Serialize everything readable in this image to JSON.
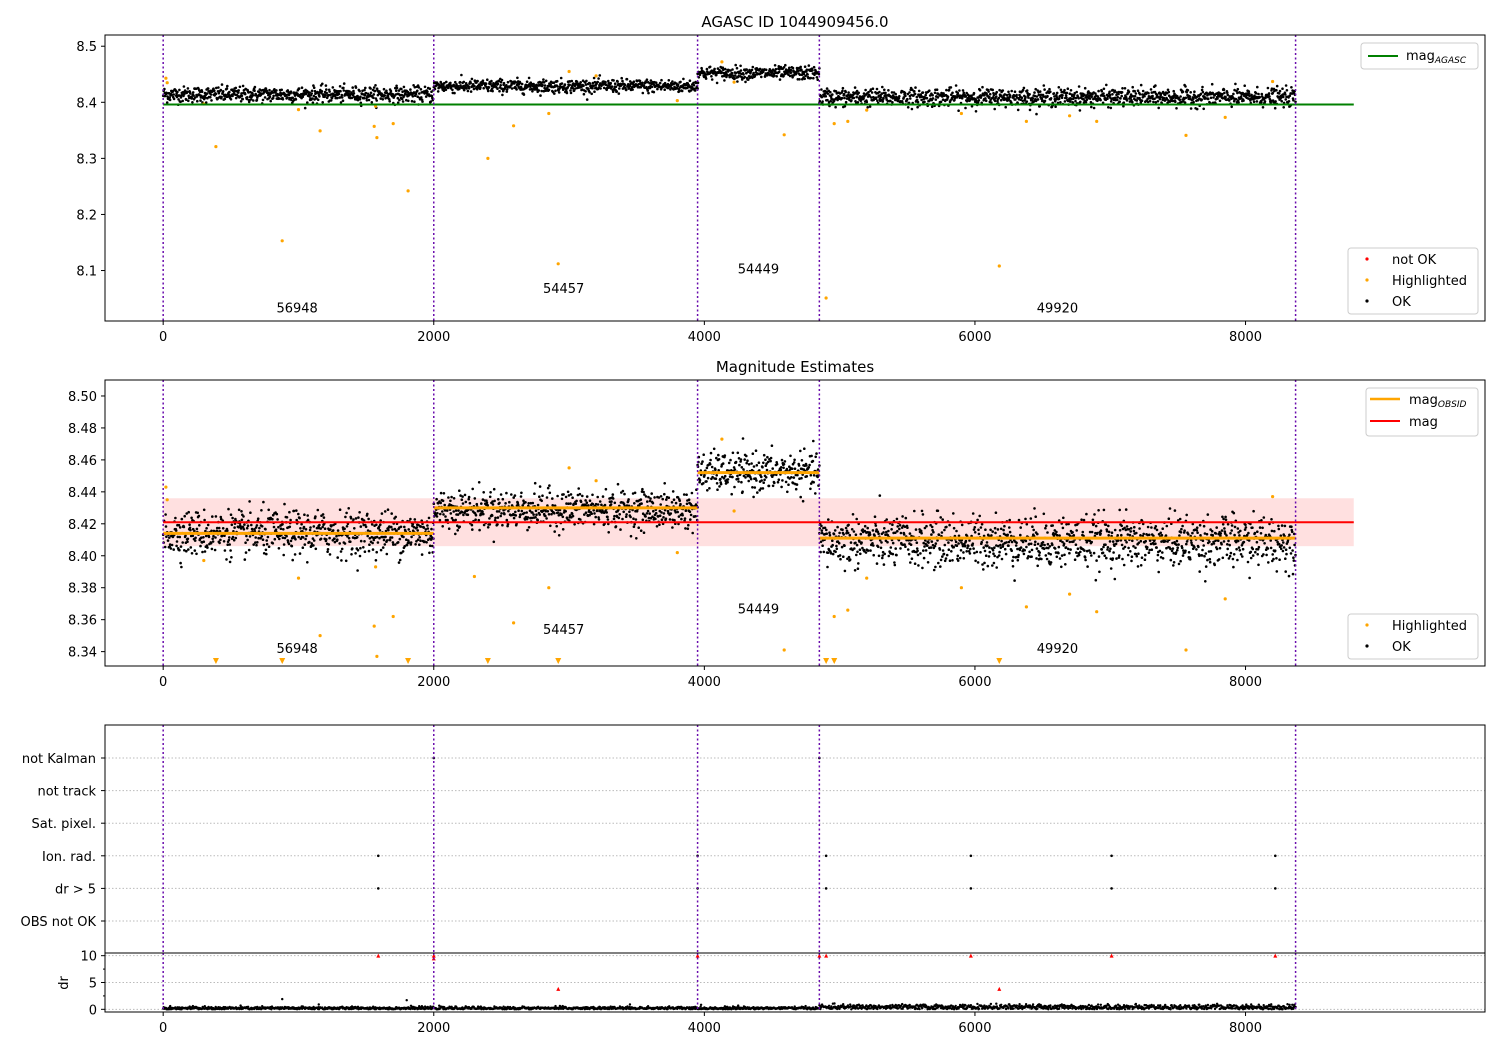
{
  "chart_data": [
    {
      "type": "scatter",
      "title": "AGASC ID 1044909456.0",
      "xlabel": "",
      "ylabel": "",
      "xlim": [
        -430,
        9770
      ],
      "ylim": [
        8.01,
        8.52
      ],
      "xticks": [
        0,
        2000,
        4000,
        6000,
        8000
      ],
      "yticks": [
        8.1,
        8.2,
        8.3,
        8.4,
        8.5
      ],
      "reference_line": {
        "name": "mag_AGASC",
        "value": 8.396,
        "x_range": [
          0,
          8800
        ],
        "color": "#008000"
      },
      "obsid_boundaries": [
        0,
        2000,
        3950,
        4850,
        8370
      ],
      "obsid_labels": [
        {
          "label": "56948",
          "x": 990,
          "y": 8.025
        },
        {
          "label": "54457",
          "x": 2960,
          "y": 8.06
        },
        {
          "label": "54449",
          "x": 4400,
          "y": 8.095
        },
        {
          "label": "49920",
          "x": 6610,
          "y": 8.025
        }
      ],
      "series": [
        {
          "name": "OK",
          "color": "#000000",
          "segments": [
            {
              "x0": 0,
              "x1": 2000,
              "mean": 8.414,
              "spread": 0.007
            },
            {
              "x0": 2000,
              "x1": 3950,
              "mean": 8.429,
              "spread": 0.006
            },
            {
              "x0": 3950,
              "x1": 4850,
              "mean": 8.452,
              "spread": 0.006
            },
            {
              "x0": 4850,
              "x1": 8370,
              "mean": 8.409,
              "spread": 0.008
            }
          ]
        },
        {
          "name": "Highlighted",
          "color": "#FFA500",
          "points": [
            [
              20,
              8.443
            ],
            [
              30,
              8.435
            ],
            [
              390,
              8.321
            ],
            [
              880,
              8.153
            ],
            [
              1160,
              8.349
            ],
            [
              1560,
              8.357
            ],
            [
              1580,
              8.337
            ],
            [
              1700,
              8.362
            ],
            [
              1810,
              8.242
            ],
            [
              1570,
              8.393
            ],
            [
              2400,
              8.3
            ],
            [
              2590,
              8.358
            ],
            [
              2850,
              8.38
            ],
            [
              2920,
              8.112
            ],
            [
              3000,
              8.455
            ],
            [
              3200,
              8.447
            ],
            [
              4130,
              8.472
            ],
            [
              4220,
              8.436
            ],
            [
              4590,
              8.342
            ],
            [
              4900,
              8.051
            ],
            [
              4960,
              8.362
            ],
            [
              5060,
              8.366
            ],
            [
              5900,
              8.38
            ],
            [
              6180,
              8.108
            ],
            [
              6380,
              8.366
            ],
            [
              6700,
              8.376
            ],
            [
              6900,
              8.366
            ],
            [
              7560,
              8.341
            ],
            [
              7850,
              8.373
            ],
            [
              8200,
              8.437
            ],
            [
              300,
              8.397
            ],
            [
              1000,
              8.387
            ],
            [
              3800,
              8.403
            ],
            [
              5200,
              8.386
            ]
          ]
        },
        {
          "name": "not OK",
          "color": "#FF0000",
          "points": []
        }
      ],
      "legend": {
        "upper": [
          "mag_AGASC"
        ],
        "lower": [
          "not OK",
          "Highlighted",
          "OK"
        ],
        "placement": "right"
      }
    },
    {
      "type": "scatter",
      "title": "Magnitude Estimates",
      "xlabel": "",
      "ylabel": "",
      "xlim": [
        -430,
        9770
      ],
      "ylim": [
        8.331,
        8.51
      ],
      "xticks": [
        0,
        2000,
        4000,
        6000,
        8000
      ],
      "yticks": [
        8.34,
        8.36,
        8.38,
        8.4,
        8.42,
        8.44,
        8.46,
        8.48,
        8.5
      ],
      "mag_line": {
        "name": "mag",
        "value": 8.421,
        "band": [
          8.406,
          8.436
        ],
        "x_range": [
          0,
          8800
        ],
        "color": "#FF0000"
      },
      "mag_obsid": [
        {
          "x0": 0,
          "x1": 2000,
          "value": 8.414
        },
        {
          "x0": 2000,
          "x1": 3950,
          "value": 8.43
        },
        {
          "x0": 3950,
          "x1": 4850,
          "value": 8.452
        },
        {
          "x0": 4850,
          "x1": 8370,
          "value": 8.411
        }
      ],
      "obsid_boundaries": [
        0,
        2000,
        3950,
        4850,
        8370
      ],
      "obsid_labels": [
        {
          "label": "56948",
          "x": 990,
          "y": 8.339
        },
        {
          "label": "54457",
          "x": 2960,
          "y": 8.351
        },
        {
          "label": "54449",
          "x": 4400,
          "y": 8.364
        },
        {
          "label": "49920",
          "x": 6610,
          "y": 8.339
        }
      ],
      "series": [
        {
          "name": "OK",
          "color": "#000000",
          "segments": [
            {
              "x0": 0,
              "x1": 2000,
              "mean": 8.414,
              "spread": 0.007
            },
            {
              "x0": 2000,
              "x1": 3950,
              "mean": 8.429,
              "spread": 0.006
            },
            {
              "x0": 3950,
              "x1": 4850,
              "mean": 8.452,
              "spread": 0.006
            },
            {
              "x0": 4850,
              "x1": 8370,
              "mean": 8.409,
              "spread": 0.008
            }
          ]
        },
        {
          "name": "Highlighted",
          "color": "#FFA500",
          "points": [
            [
              20,
              8.443
            ],
            [
              30,
              8.435
            ],
            [
              1160,
              8.35
            ],
            [
              1560,
              8.356
            ],
            [
              1580,
              8.337
            ],
            [
              1700,
              8.362
            ],
            [
              1570,
              8.393
            ],
            [
              2590,
              8.358
            ],
            [
              2850,
              8.38
            ],
            [
              3000,
              8.455
            ],
            [
              3200,
              8.447
            ],
            [
              4130,
              8.473
            ],
            [
              4220,
              8.428
            ],
            [
              4590,
              8.341
            ],
            [
              4960,
              8.362
            ],
            [
              5060,
              8.366
            ],
            [
              5900,
              8.38
            ],
            [
              6380,
              8.368
            ],
            [
              6700,
              8.376
            ],
            [
              6900,
              8.365
            ],
            [
              7560,
              8.341
            ],
            [
              7850,
              8.373
            ],
            [
              8200,
              8.437
            ],
            [
              300,
              8.397
            ],
            [
              1000,
              8.386
            ],
            [
              3800,
              8.402
            ],
            [
              5200,
              8.386
            ],
            [
              2300,
              8.387
            ]
          ],
          "offscale_markers": [
            390,
            880,
            1810,
            2400,
            2920,
            4900,
            4960,
            6180
          ]
        }
      ],
      "legend": {
        "upper": [
          "mag_OBSID",
          "mag"
        ],
        "lower": [
          "Highlighted",
          "OK"
        ],
        "placement": "right"
      }
    },
    {
      "type": "scatter",
      "title": "",
      "xlabel": "",
      "ylabel": "",
      "xlim": [
        -430,
        9770
      ],
      "flag_rows": [
        "not Kalman",
        "not track",
        "Sat. pixel.",
        "Ion. rad.",
        "dr > 5",
        "OBS not OK"
      ],
      "flag_points": {
        "not Kalman": [
          2000,
          4850
        ],
        "not track": [],
        "Sat. pixel.": [],
        "Ion. rad.": [
          1590,
          3950,
          4900,
          5970,
          7010,
          8220
        ],
        "dr > 5": [
          1590,
          3950,
          4900,
          5970,
          7010,
          8220
        ],
        "OBS not OK": []
      },
      "grid": true
    },
    {
      "type": "scatter",
      "title": "",
      "xlabel": "",
      "ylabel": "dr",
      "xlim": [
        -430,
        9770
      ],
      "ylim": [
        -0.5,
        10.5
      ],
      "xticks": [
        0,
        2000,
        4000,
        6000,
        8000
      ],
      "yticks": [
        0,
        5,
        10
      ],
      "obsid_boundaries": [
        0,
        2000,
        3950,
        4850,
        8370
      ],
      "series": [
        {
          "name": "dr",
          "color": "#000000",
          "segments": [
            {
              "x0": 0,
              "x1": 4850,
              "mean": 0.2,
              "spread": 0.15
            },
            {
              "x0": 4850,
              "x1": 8370,
              "mean": 0.4,
              "spread": 0.25
            }
          ],
          "extra_points": [
            [
              880,
              1.9
            ],
            [
              1800,
              1.7
            ],
            [
              1150,
              0.9
            ],
            [
              2900,
              0.6
            ],
            [
              3450,
              0.9
            ],
            [
              4250,
              0.7
            ]
          ]
        },
        {
          "name": "dr > 5",
          "color": "#FF0000",
          "marker": "triangle",
          "points": [
            [
              1590,
              10
            ],
            [
              2000,
              10
            ],
            [
              2000,
              9.5
            ],
            [
              3950,
              10
            ],
            [
              4850,
              10
            ],
            [
              4900,
              10
            ],
            [
              5970,
              10
            ],
            [
              7010,
              10
            ],
            [
              8220,
              10
            ],
            [
              2920,
              3.8
            ],
            [
              6180,
              3.8
            ]
          ]
        }
      ]
    }
  ]
}
